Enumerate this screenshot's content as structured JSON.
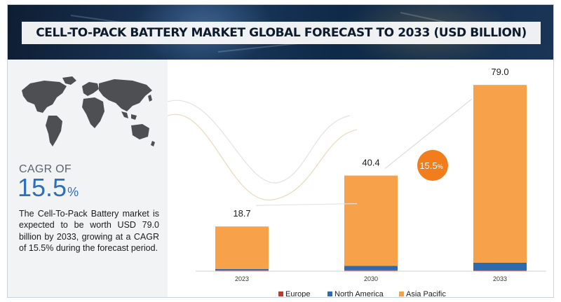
{
  "header": {
    "title": "CELL-TO-PACK BATTERY MARKET GLOBAL FORECAST TO 2033 (USD BILLION)"
  },
  "left_panel": {
    "map_icon": "world-map-icon",
    "cagr_label": "CAGR OF",
    "cagr_value": "15.5",
    "cagr_unit": "%",
    "description": "The Cell-To-Pack Battery market is expected to be worth USD 79.0 billion by 2033, growing at a CAGR of 15.5% during the forecast period."
  },
  "chart_data": {
    "type": "bar",
    "stacked": true,
    "categories": [
      "2023",
      "2030",
      "2033"
    ],
    "totals": [
      18.7,
      40.4,
      79.0
    ],
    "total_labels": [
      "18.7",
      "40.4",
      "79.0"
    ],
    "series": [
      {
        "name": "Europe",
        "color": "#c0392b",
        "values": [
          0.1,
          0.2,
          0.6
        ]
      },
      {
        "name": "North America",
        "color": "#2f6aad",
        "values": [
          0.6,
          1.9,
          3.0
        ]
      },
      {
        "name": "Asia Pacific",
        "color": "#f7a24a",
        "values": [
          18.0,
          38.3,
          75.4
        ]
      }
    ],
    "ylim": [
      0,
      85
    ],
    "cagr_bubble": {
      "text": "15.5",
      "unit": "%",
      "color": "#f27d1c"
    },
    "legend_position": "bottom",
    "grid": false
  }
}
